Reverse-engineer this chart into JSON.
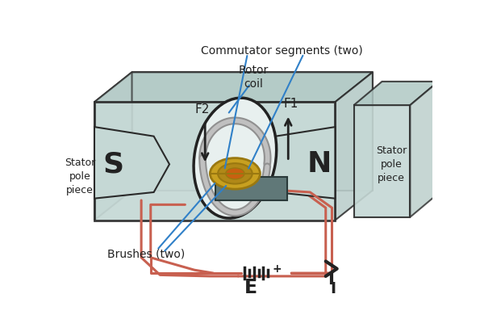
{
  "bg_color": "#ffffff",
  "box_fill": "#c5d8d5",
  "box_fill_top": "#b0c8c4",
  "box_fill_side": "#b8ccc9",
  "box_edge": "#2a2a2a",
  "pole_fill": "#c5d8d5",
  "comm_gold": "#c8a020",
  "comm_gold_dark": "#9a7810",
  "comm_inner": "#b08818",
  "brush_fill": "#607878",
  "brush_edge": "#2a3a3a",
  "coil_color": "#909090",
  "coil_color2": "#c0c0c0",
  "wire_color": "#c86050",
  "blue": "#3080c8",
  "black": "#222222",
  "dark_gray": "#444444",
  "labels": {
    "commutator": "Commutator segments (two)",
    "rotor": "Rotor\ncoil",
    "f2": "F2",
    "f1": "F1",
    "stator_left": "Stator\npole\npiece",
    "stator_right": "Stator\npole\npiece",
    "s": "S",
    "n": "N",
    "brushes": "Brushes (two)",
    "e": "E",
    "i": "I",
    "plus": "+"
  }
}
